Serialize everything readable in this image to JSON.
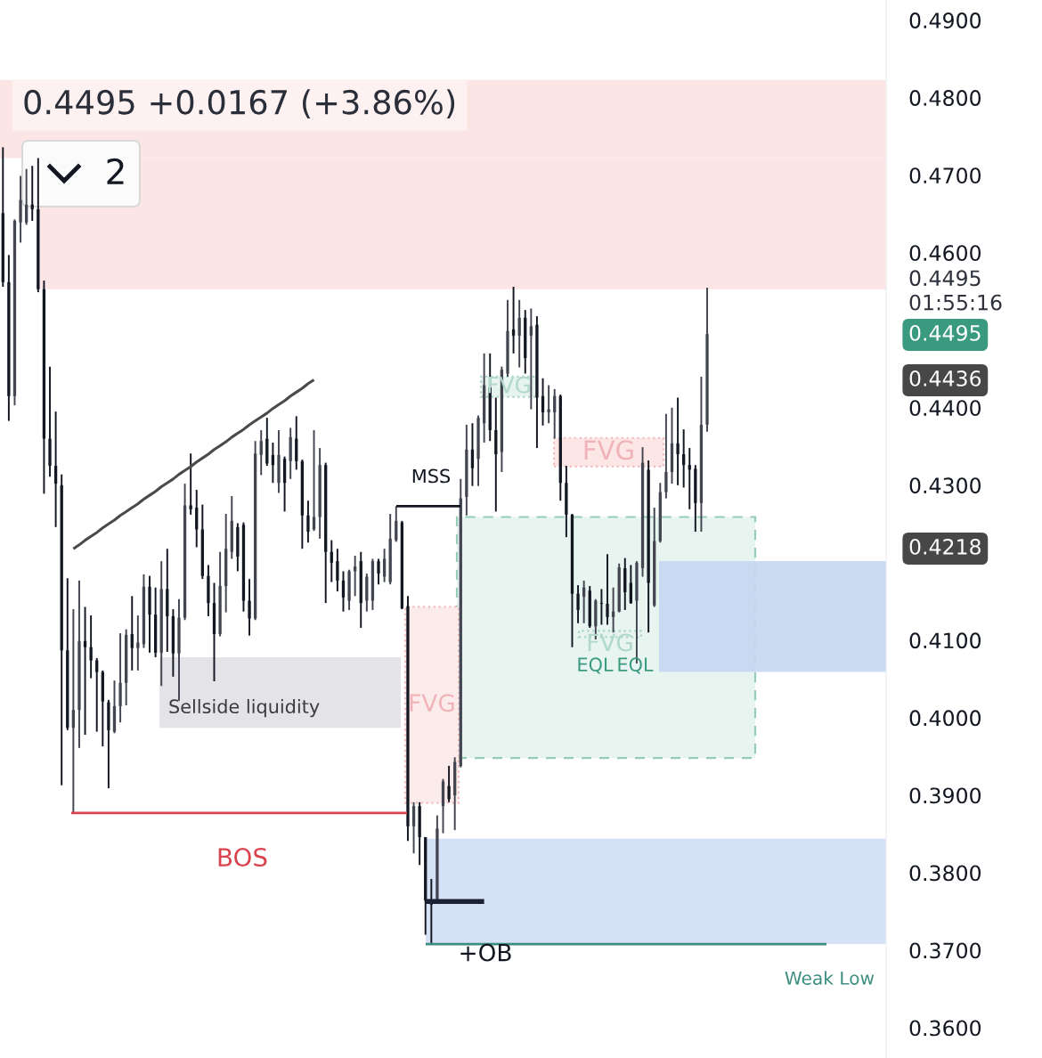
{
  "chart_data": {
    "type": "candlestick",
    "subtitle": "0.4495 +0.0167 (+3.86%)",
    "categories": [
      null,
      null,
      null,
      null,
      null,
      null,
      null,
      null,
      null,
      null,
      null,
      null,
      null,
      null,
      null,
      null,
      null,
      null,
      null,
      null,
      null,
      null,
      null,
      null,
      null,
      null,
      null,
      null,
      null,
      null,
      null,
      null,
      null,
      null,
      null,
      null,
      null,
      null,
      null,
      null,
      null,
      null,
      null,
      null,
      null,
      null,
      null,
      null,
      null,
      null,
      null,
      null,
      null,
      null,
      null,
      null,
      null,
      null,
      null,
      null,
      null,
      null,
      null,
      null,
      null,
      null,
      null,
      null,
      null,
      null,
      null,
      null,
      null,
      null,
      null,
      null,
      null,
      null,
      null,
      null,
      null,
      null,
      null,
      null,
      null,
      null,
      null,
      null,
      null,
      null,
      null,
      null,
      null,
      null,
      null,
      null,
      null,
      null,
      null,
      null,
      null,
      null,
      null,
      null,
      null,
      null,
      null,
      null,
      null,
      null,
      null,
      null,
      null,
      null,
      null,
      null,
      null,
      null,
      null,
      null,
      null,
      null,
      null,
      null,
      null,
      null,
      null,
      null,
      null,
      null,
      null,
      null,
      null,
      null,
      null,
      null,
      null,
      null,
      null,
      null,
      null,
      null,
      null,
      null,
      null,
      null,
      null,
      null,
      null,
      null,
      null
    ],
    "series": [
      {
        "ohlc": [
          [
            0.4651,
            0.4736,
            0.4556,
            0.4562
          ],
          [
            0.4562,
            0.4597,
            0.4383,
            0.4415
          ],
          [
            0.4415,
            0.4643,
            0.4403,
            0.4641
          ],
          [
            0.4639,
            0.4699,
            0.4613,
            0.4668
          ],
          [
            0.4639,
            0.4708,
            0.4636,
            0.4662
          ],
          [
            0.4662,
            0.4712,
            0.4641,
            0.4656
          ],
          [
            0.4656,
            0.4722,
            0.4549,
            0.4553
          ],
          [
            0.4553,
            0.4564,
            0.4289,
            0.436
          ],
          [
            0.436,
            0.4453,
            0.4311,
            0.4325
          ],
          [
            0.4325,
            0.4395,
            0.4246,
            0.4302
          ],
          [
            0.43,
            0.4314,
            0.3913,
            0.4087
          ],
          [
            0.4087,
            0.418,
            0.3984,
            0.3987
          ],
          [
            0.3987,
            0.414,
            0.3877,
            0.401
          ],
          [
            0.401,
            0.4177,
            0.3961,
            0.4099
          ],
          [
            0.4099,
            0.4143,
            0.3978,
            0.4091
          ],
          [
            0.4091,
            0.4132,
            0.4051,
            0.4074
          ],
          [
            0.4074,
            0.4077,
            0.3982,
            0.4059
          ],
          [
            0.4059,
            0.4061,
            0.3963,
            0.4021
          ],
          [
            0.402,
            0.4023,
            0.3909,
            0.3984
          ],
          [
            0.3982,
            0.4048,
            0.398,
            0.4015
          ],
          [
            0.4015,
            0.4109,
            0.3994,
            0.4045
          ],
          [
            0.4045,
            0.4114,
            0.4016,
            0.4107
          ],
          [
            0.4108,
            0.4157,
            0.4061,
            0.409
          ],
          [
            0.409,
            0.4132,
            0.4061,
            0.4097
          ],
          [
            0.4095,
            0.4185,
            0.409,
            0.4169
          ],
          [
            0.4169,
            0.4183,
            0.4084,
            0.4133
          ],
          [
            0.4133,
            0.4168,
            0.4078,
            0.4084
          ],
          [
            0.4084,
            0.4202,
            0.4041,
            0.4166
          ],
          [
            0.4166,
            0.4218,
            0.4085,
            0.4131
          ],
          [
            0.4131,
            0.414,
            0.4053,
            0.4083
          ],
          [
            0.4083,
            0.4153,
            0.4022,
            0.4129
          ],
          [
            0.4129,
            0.4302,
            0.4126,
            0.4274
          ],
          [
            0.4274,
            0.4341,
            0.4262,
            0.4269
          ],
          [
            0.4271,
            0.4294,
            0.422,
            0.4243
          ],
          [
            0.4243,
            0.4275,
            0.4179,
            0.4183
          ],
          [
            0.4183,
            0.4197,
            0.4131,
            0.4148
          ],
          [
            0.4148,
            0.4174,
            0.4047,
            0.4108
          ],
          [
            0.4108,
            0.4214,
            0.4105,
            0.417
          ],
          [
            0.417,
            0.4263,
            0.4136,
            0.4218
          ],
          [
            0.4214,
            0.4286,
            0.4205,
            0.4254
          ],
          [
            0.4246,
            0.4251,
            0.4189,
            0.4208
          ],
          [
            0.4249,
            0.4252,
            0.4137,
            0.4151
          ],
          [
            0.4151,
            0.4179,
            0.4106,
            0.4128
          ],
          [
            0.4128,
            0.4357,
            0.4126,
            0.4341
          ],
          [
            0.4339,
            0.4371,
            0.4313,
            0.4357
          ],
          [
            0.436,
            0.4387,
            0.4325,
            0.4328
          ],
          [
            0.4339,
            0.4355,
            0.4303,
            0.4326
          ],
          [
            0.4303,
            0.4371,
            0.429,
            0.4339
          ],
          [
            0.4334,
            0.4337,
            0.4266,
            0.4303
          ],
          [
            0.4331,
            0.4374,
            0.4308,
            0.4362
          ],
          [
            0.436,
            0.4389,
            0.432,
            0.4331
          ],
          [
            0.4331,
            0.4333,
            0.4218,
            0.4261
          ],
          [
            0.4261,
            0.428,
            0.4226,
            0.424
          ],
          [
            0.4243,
            0.4371,
            0.4241,
            0.4259
          ],
          [
            0.4259,
            0.4348,
            0.4231,
            0.4326
          ],
          [
            0.4326,
            0.4329,
            0.4148,
            0.4214
          ],
          [
            0.4214,
            0.4229,
            0.4175,
            0.42
          ],
          [
            0.4202,
            0.4218,
            0.4163,
            0.4177
          ],
          [
            0.4177,
            0.4189,
            0.4137,
            0.4155
          ],
          [
            0.4151,
            0.4191,
            0.4139,
            0.4189
          ],
          [
            0.4189,
            0.4209,
            0.4157,
            0.4195
          ],
          [
            0.4202,
            0.4214,
            0.4116,
            0.4148
          ],
          [
            0.4151,
            0.4186,
            0.4137,
            0.4182
          ],
          [
            0.4151,
            0.4205,
            0.4139,
            0.4202
          ],
          [
            0.4202,
            0.4205,
            0.4172,
            0.4186
          ],
          [
            0.4182,
            0.4218,
            0.4175,
            0.4205
          ],
          [
            0.4175,
            0.4263,
            0.4172,
            0.4231
          ],
          [
            0.4229,
            0.4273,
            0.4227,
            0.4254
          ],
          [
            0.4252,
            0.4254,
            0.414,
            0.4141
          ],
          [
            0.4144,
            0.4157,
            0.3841,
            0.386
          ],
          [
            0.386,
            0.3891,
            0.3825,
            0.3886
          ],
          [
            0.3886,
            0.3891,
            0.381,
            0.3846
          ],
          [
            0.3846,
            0.3846,
            0.372,
            0.3764
          ],
          [
            0.3764,
            0.3792,
            0.3708,
            0.3759
          ],
          [
            0.3762,
            0.3874,
            0.376,
            0.3857
          ],
          [
            0.3886,
            0.3921,
            0.3851,
            0.3918
          ],
          [
            0.3912,
            0.3938,
            0.3891,
            0.3895
          ],
          [
            0.39,
            0.3949,
            0.3855,
            0.3943
          ],
          [
            0.3938,
            0.4308,
            0.3936,
            0.4283
          ],
          [
            0.4285,
            0.4378,
            0.4261,
            0.4346
          ],
          [
            0.4346,
            0.438,
            0.4299,
            0.4322
          ],
          [
            0.4334,
            0.439,
            0.4299,
            0.4387
          ],
          [
            0.438,
            0.447,
            0.4355,
            0.4429
          ],
          [
            0.4426,
            0.447,
            0.4357,
            0.4371
          ],
          [
            0.4371,
            0.4413,
            0.4266,
            0.434
          ],
          [
            0.4343,
            0.4453,
            0.4317,
            0.4449
          ],
          [
            0.4444,
            0.4539,
            0.444,
            0.4499
          ],
          [
            0.4501,
            0.4556,
            0.447,
            0.4493
          ],
          [
            0.4493,
            0.4539,
            0.4452,
            0.4516
          ],
          [
            0.4516,
            0.4526,
            0.4444,
            0.4464
          ],
          [
            0.4493,
            0.4528,
            0.4398,
            0.4505
          ],
          [
            0.4507,
            0.4518,
            0.4348,
            0.4413
          ],
          [
            0.4415,
            0.4438,
            0.4377,
            0.4394
          ],
          [
            0.4394,
            0.4429,
            0.438,
            0.4398
          ],
          [
            0.4394,
            0.4424,
            0.436,
            0.4415
          ],
          [
            0.4415,
            0.4417,
            0.428,
            0.4303
          ],
          [
            0.4303,
            0.4325,
            0.4233,
            0.4262
          ],
          [
            0.4262,
            0.4263,
            0.4091,
            0.416
          ],
          [
            0.416,
            0.4171,
            0.4122,
            0.4139
          ],
          [
            0.4156,
            0.4177,
            0.4122,
            0.4168
          ],
          [
            0.4164,
            0.417,
            0.4116,
            0.4118
          ],
          [
            0.4118,
            0.4153,
            0.4101,
            0.4151
          ],
          [
            0.4148,
            0.4166,
            0.412,
            0.4147
          ],
          [
            0.4147,
            0.4211,
            0.412,
            0.413
          ],
          [
            0.413,
            0.4168,
            0.411,
            0.4137
          ],
          [
            0.4137,
            0.4199,
            0.4136,
            0.4194
          ],
          [
            0.4193,
            0.4206,
            0.4139,
            0.4162
          ],
          [
            0.4174,
            0.4197,
            0.4147,
            0.4148
          ],
          [
            0.4151,
            0.4202,
            0.407,
            0.42
          ],
          [
            0.4193,
            0.4349,
            0.4182,
            0.4329
          ],
          [
            0.432,
            0.4332,
            0.411,
            0.4174
          ],
          [
            0.4145,
            0.4271,
            0.4143,
            0.4228
          ],
          [
            0.4228,
            0.4303,
            0.4226,
            0.4291
          ],
          [
            0.4291,
            0.4392,
            0.4283,
            0.4317
          ],
          [
            0.4317,
            0.44,
            0.4302,
            0.4354
          ],
          [
            0.4354,
            0.4413,
            0.43,
            0.434
          ],
          [
            0.434,
            0.4372,
            0.4297,
            0.4326
          ],
          [
            0.4326,
            0.4348,
            0.4269,
            0.432
          ],
          [
            0.4321,
            0.4326,
            0.424,
            0.4277
          ],
          [
            0.4277,
            0.444,
            0.424,
            0.4378
          ],
          [
            0.4378,
            0.4555,
            0.4369,
            0.4495
          ],
          null,
          null,
          null,
          null,
          null,
          null,
          null,
          null,
          null,
          null,
          null,
          null,
          null,
          null,
          null,
          null,
          null,
          null,
          null,
          null,
          null,
          null,
          null,
          null,
          null,
          null,
          null,
          null,
          null,
          null
        ],
        "colors": [
          "#131722",
          "#131722",
          "#434651",
          "#434651",
          "#434651",
          "#131722",
          "#131722",
          "#131722",
          "#131722",
          "#131722",
          "#131722",
          "#131722",
          "#434651",
          "#434651",
          "#131722",
          "#131722",
          "#131722",
          "#131722",
          "#131722",
          "#434651",
          "#434651",
          "#434651",
          "#131722",
          "#434651",
          "#434651",
          "#131722",
          "#131722",
          "#434651",
          "#131722",
          "#131722",
          "#434651",
          "#434651",
          "#131722",
          "#131722",
          "#131722",
          "#131722",
          "#131722",
          "#434651",
          "#434651",
          "#434651",
          "#131722",
          "#131722",
          "#131722",
          "#434651",
          "#434651",
          "#131722",
          "#131722",
          "#434651",
          "#131722",
          "#434651",
          "#131722",
          "#131722",
          "#131722",
          "#434651",
          "#434651",
          "#131722",
          "#131722",
          "#131722",
          "#131722",
          "#434651",
          "#434651",
          "#131722",
          "#434651",
          "#434651",
          "#131722",
          "#434651",
          "#434651",
          "#434651",
          "#131722",
          "#131722",
          "#434651",
          "#131722",
          "#131722",
          "#131722",
          "#434651",
          "#434651",
          "#131722",
          "#434651",
          "#434651",
          "#434651",
          "#131722",
          "#434651",
          "#434651",
          "#131722",
          "#131722",
          "#434651",
          "#434651",
          "#131722",
          "#434651",
          "#131722",
          "#434651",
          "#131722",
          "#131722",
          "#434651",
          "#434651",
          "#131722",
          "#131722",
          "#131722",
          "#131722",
          "#434651",
          "#131722",
          "#434651",
          "#131722",
          "#131722",
          "#434651",
          "#434651",
          "#131722",
          "#131722",
          "#434651",
          "#434651",
          "#131722",
          "#434651",
          "#434651",
          "#434651",
          "#434651",
          "#131722",
          "#131722",
          "#131722",
          "#131722",
          "#434651",
          "#434651",
          null,
          null,
          null,
          null,
          null,
          null,
          null,
          null,
          null,
          null,
          null,
          null,
          null,
          null,
          null,
          null,
          null,
          null,
          null,
          null,
          null,
          null,
          null,
          null,
          null,
          null,
          null,
          null,
          null,
          null
        ]
      },
      {
        "type": "line",
        "color": "#4a4a4a",
        "values": [
          null,
          null,
          null,
          null,
          null,
          null,
          null,
          null,
          null,
          null,
          null,
          null,
          0.4218,
          0.4223,
          0.4229,
          0.4234,
          0.4239,
          0.4245,
          0.425,
          0.4255,
          0.4261,
          0.4266,
          0.4271,
          0.4276,
          0.4282,
          0.4287,
          0.4292,
          0.4298,
          0.4303,
          0.4308,
          0.4314,
          0.4319,
          0.4324,
          0.433,
          0.4335,
          0.434,
          0.4346,
          0.4351,
          0.4356,
          0.4362,
          0.4367,
          0.4372,
          0.4378,
          0.4383,
          0.4388,
          0.4393,
          0.4399,
          0.4404,
          0.4409,
          0.4415,
          0.442,
          0.4425,
          0.4431,
          0.4436,
          null,
          null,
          null,
          null,
          null,
          null,
          null,
          null,
          null,
          null,
          null,
          null,
          null,
          null,
          null,
          null,
          null,
          null,
          null,
          null,
          null,
          null,
          null,
          null,
          null,
          null,
          null,
          null,
          null,
          null,
          null,
          null,
          null,
          null,
          null,
          null,
          null,
          null,
          null,
          null,
          null,
          null,
          null,
          null,
          null,
          null,
          null,
          null,
          null,
          null,
          null,
          null,
          null,
          null,
          null,
          null,
          null,
          null,
          null,
          null,
          null,
          null,
          null,
          null,
          null,
          null,
          null,
          null,
          null,
          null,
          null,
          null,
          null,
          null,
          null,
          null,
          null,
          null,
          null,
          null,
          null,
          null,
          null,
          null,
          null,
          null,
          null,
          null,
          null,
          null,
          null,
          null,
          null,
          null,
          null,
          null,
          null
        ]
      },
      {
        "type": "line",
        "color": "#1a2233",
        "values": [
          null,
          null,
          null,
          null,
          null,
          null,
          null,
          null,
          null,
          null,
          null,
          null,
          null,
          null,
          null,
          null,
          null,
          null,
          null,
          null,
          null,
          null,
          null,
          null,
          null,
          null,
          null,
          null,
          null,
          null,
          null,
          null,
          null,
          null,
          null,
          null,
          null,
          null,
          null,
          null,
          null,
          null,
          null,
          null,
          null,
          null,
          null,
          null,
          null,
          null,
          null,
          null,
          null,
          null,
          null,
          null,
          null,
          null,
          null,
          null,
          null,
          null,
          null,
          null,
          null,
          null,
          null,
          null,
          null,
          null,
          null,
          null,
          0.3763,
          0.3763,
          0.3763,
          0.3763,
          0.3763,
          0.3763,
          0.3763,
          0.3763,
          0.3763,
          0.3763,
          0.3763,
          null,
          null,
          null,
          null,
          null,
          null,
          null,
          null,
          null,
          null,
          null,
          null,
          null,
          null,
          null,
          null,
          null,
          null,
          null,
          null,
          null,
          null,
          null,
          null,
          null,
          null,
          null,
          null,
          null,
          null,
          null,
          null,
          null,
          null,
          null,
          null,
          null,
          null,
          null,
          null,
          null,
          null,
          null,
          null,
          null,
          null,
          null,
          null,
          null,
          null,
          null,
          null,
          null,
          null,
          null,
          null,
          null,
          null,
          null,
          null,
          null,
          null,
          null,
          null,
          null,
          null,
          null,
          null
        ]
      }
    ],
    "ylim": [
      0.3561,
      0.4926
    ],
    "yticks": [
      {
        "value": 0.36,
        "label": "0.3600"
      },
      {
        "value": 0.37,
        "label": "0.3700"
      },
      {
        "value": 0.38,
        "label": "0.3800"
      },
      {
        "value": 0.39,
        "label": "0.3900"
      },
      {
        "value": 0.4,
        "label": "0.4000"
      },
      {
        "value": 0.41,
        "label": "0.4100"
      },
      {
        "value": 0.43,
        "label": "0.4300"
      },
      {
        "value": 0.44,
        "label": "0.4400"
      },
      {
        "value": 0.46,
        "label": "0.4600"
      },
      {
        "value": 0.47,
        "label": "0.4700"
      },
      {
        "value": 0.48,
        "label": "0.4800"
      },
      {
        "value": 0.49,
        "label": "0.4900"
      }
    ],
    "tick_labels": "y",
    "bands": [
      {
        "axis": "y",
        "from": 0.4722,
        "to": 0.4823,
        "color": "#fce5e5"
      },
      {
        "axis": "y",
        "from": 0.4553,
        "to": 0.4722,
        "color": "#fce5e5"
      },
      {
        "axis": "y",
        "from": 0.3987,
        "to": 0.4078,
        "label": "Sellside liquidity",
        "color": "#e4e4e8"
      },
      {
        "axis": "y",
        "from": 0.389,
        "to": 0.4143,
        "label": "FVG",
        "color": "#fcebeb"
      },
      {
        "axis": "y",
        "from": 0.3948,
        "to": 0.4259,
        "color": "#e8f4f0"
      },
      {
        "axis": "y",
        "from": 0.4059,
        "to": 0.4202,
        "color": "#c4d7f1"
      },
      {
        "axis": "y",
        "from": 0.3708,
        "to": 0.3844,
        "label": "+OB",
        "color": "#d5e1f7"
      },
      {
        "axis": "y",
        "from": 0.4324,
        "to": 0.4361,
        "label": "FVG",
        "color": "#fce6e6"
      },
      {
        "axis": "y",
        "from": 0.4414,
        "to": 0.444,
        "label": "FVG",
        "color": "#e6f3ef"
      },
      {
        "axis": "y",
        "from": 0.4104,
        "to": 0.4112,
        "label": "FVG",
        "color": "#e6f3ef"
      }
    ],
    "ref_lines": [
      {
        "axis": "y",
        "value": 0.3877,
        "label": "BOS",
        "color": "#d9434e"
      },
      {
        "axis": "y",
        "value": 0.4273,
        "label": "MSS",
        "color": "#131722"
      },
      {
        "axis": "y",
        "value": 0.3708,
        "label": "Weak Low",
        "color": "#3d8d80"
      }
    ],
    "annotations": [
      "2",
      "EQL",
      "EQL",
      "0.4495\n01:55:16",
      "0.4495",
      "0.4436",
      "0.4218"
    ]
  }
}
